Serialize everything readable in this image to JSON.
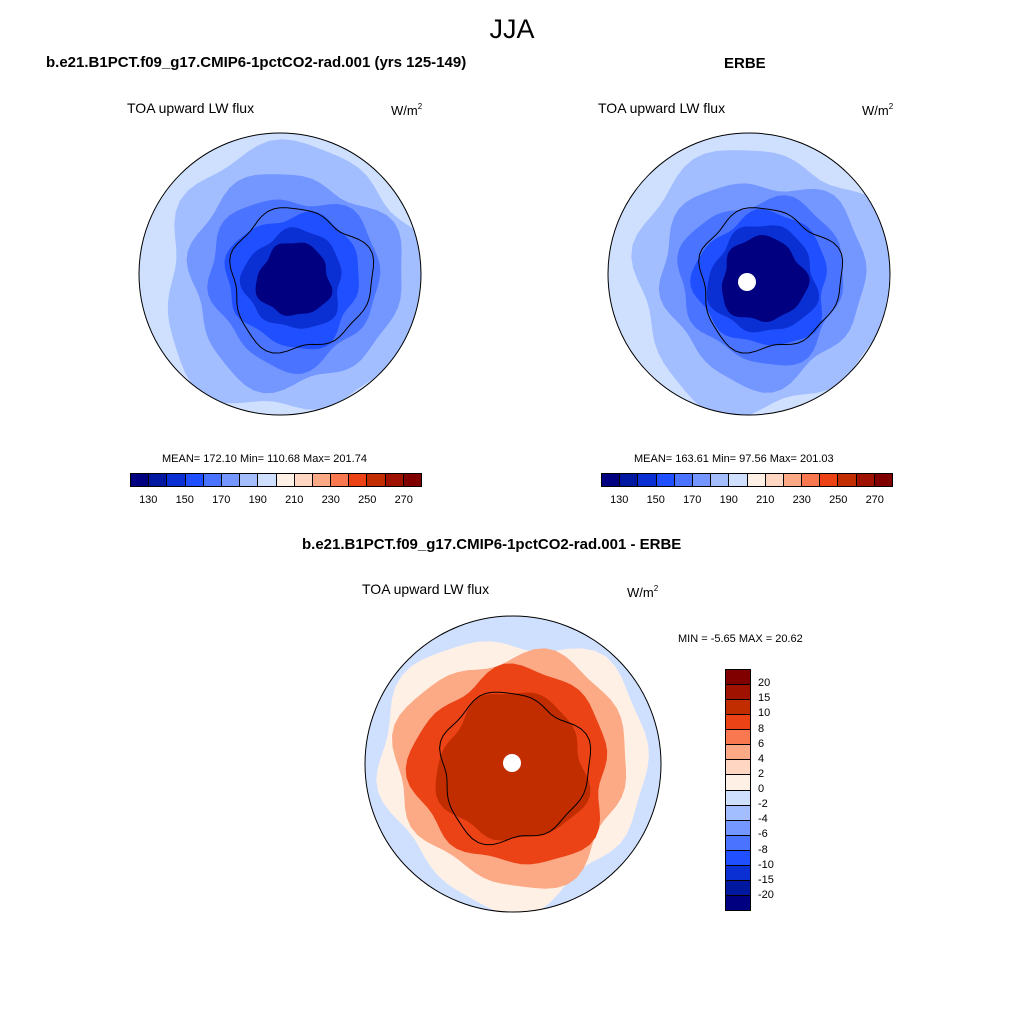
{
  "season": "JJA",
  "chart_data": [
    {
      "type": "heatmap",
      "projection": "south-polar-stereographic",
      "title": "b.e21.B1PCT.f09_g17.CMIP6-1pctCO2-rad.001 (yrs 125-149)",
      "variable": "TOA upward LW flux",
      "units_base": "W/m",
      "units_exp": "2",
      "stats": "MEAN= 172.10  Min= 110.68  Max= 201.74",
      "mean": 172.1,
      "min": 110.68,
      "max": 201.74,
      "levels": [
        130,
        140,
        150,
        160,
        170,
        180,
        190,
        200,
        210,
        220,
        230,
        240,
        250,
        260,
        270
      ],
      "tick_labels": [
        "130",
        "150",
        "170",
        "190",
        "210",
        "230",
        "250",
        "270"
      ],
      "colors": [
        "#000080",
        "#0018a0",
        "#0a2fd2",
        "#1f4fff",
        "#4a73ff",
        "#7396ff",
        "#a3beff",
        "#cfe0ff",
        "#fff0e6",
        "#fed6c1",
        "#fca986",
        "#f97850",
        "#eb4315",
        "#c22d00",
        "#a01200",
        "#800000"
      ],
      "zones": [
        {
          "r": 1.0,
          "v": 195
        },
        {
          "r": 0.94,
          "v": 185
        },
        {
          "r": 0.75,
          "v": 175
        },
        {
          "r": 0.6,
          "v": 165
        },
        {
          "r": 0.47,
          "v": 155
        },
        {
          "r": 0.35,
          "v": 145
        },
        {
          "r": 0.26,
          "v": 122
        }
      ]
    },
    {
      "type": "heatmap",
      "projection": "south-polar-stereographic",
      "title": "ERBE",
      "variable": "TOA upward LW flux",
      "units_base": "W/m",
      "units_exp": "2",
      "stats": "MEAN= 163.61  Min=  97.56  Max= 201.03",
      "mean": 163.61,
      "min": 97.56,
      "max": 201.03,
      "levels": [
        130,
        140,
        150,
        160,
        170,
        180,
        190,
        200,
        210,
        220,
        230,
        240,
        250,
        260,
        270
      ],
      "tick_labels": [
        "130",
        "150",
        "170",
        "190",
        "210",
        "230",
        "250",
        "270"
      ],
      "colors": [
        "#000080",
        "#0018a0",
        "#0a2fd2",
        "#1f4fff",
        "#4a73ff",
        "#7396ff",
        "#a3beff",
        "#cfe0ff",
        "#fff0e6",
        "#fed6c1",
        "#fca986",
        "#f97850",
        "#eb4315",
        "#c22d00",
        "#a01200",
        "#800000"
      ],
      "zones": [
        {
          "r": 1.0,
          "v": 195
        },
        {
          "r": 0.92,
          "v": 185
        },
        {
          "r": 0.72,
          "v": 175
        },
        {
          "r": 0.58,
          "v": 165
        },
        {
          "r": 0.47,
          "v": 155
        },
        {
          "r": 0.38,
          "v": 140
        },
        {
          "r": 0.3,
          "v": 120
        }
      ]
    },
    {
      "type": "heatmap",
      "projection": "south-polar-stereographic",
      "title": "b.e21.B1PCT.f09_g17.CMIP6-1pctCO2-rad.001 - ERBE",
      "variable": "TOA upward LW flux",
      "units_base": "W/m",
      "units_exp": "2",
      "stats": "MIN =  -5.65 MAX =  20.62",
      "min": -5.65,
      "max": 20.62,
      "levels": [
        -20,
        -15,
        -10,
        -8,
        -6,
        -4,
        -2,
        0,
        2,
        4,
        6,
        8,
        10,
        15,
        20
      ],
      "tick_labels": [
        "20",
        "15",
        "10",
        "8",
        "6",
        "4",
        "2",
        "0",
        "-2",
        "-4",
        "-6",
        "-8",
        "-10",
        "-15",
        "-20"
      ],
      "colors": [
        "#000080",
        "#0018a0",
        "#0a2fd2",
        "#1f4fff",
        "#4a73ff",
        "#7396ff",
        "#a3beff",
        "#cfe0ff",
        "#fff0e6",
        "#fed6c1",
        "#fca986",
        "#f97850",
        "#eb4315",
        "#c22d00",
        "#a01200",
        "#800000"
      ],
      "zones": [
        {
          "r": 1.0,
          "v": -1
        },
        {
          "r": 0.9,
          "v": 1
        },
        {
          "r": 0.78,
          "v": 5
        },
        {
          "r": 0.66,
          "v": 9
        },
        {
          "r": 0.5,
          "v": 12
        }
      ]
    }
  ]
}
